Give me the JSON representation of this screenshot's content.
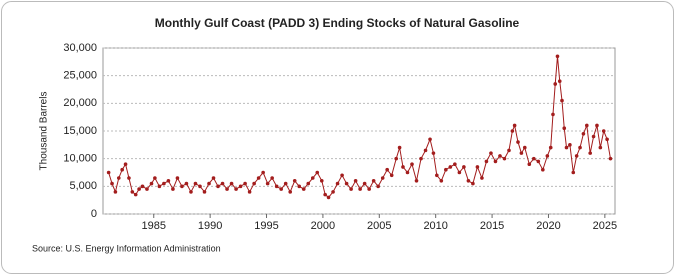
{
  "chart_data": {
    "type": "line",
    "title": "Monthly Gulf Coast (PADD 3) Ending Stocks of Natural Gasoline",
    "y_label": "Thousand Barrels",
    "source": "Source: U.S. Energy Information Administration",
    "color": "#a31d1d",
    "grid": true,
    "xlim": [
      1980.5,
      2025.9
    ],
    "xticks": [
      1985,
      1990,
      1995,
      2000,
      2005,
      2010,
      2015,
      2020,
      2025
    ],
    "ylim": [
      0,
      30000
    ],
    "yticks": [
      0,
      {
        "value": 5000,
        "label": "5,000"
      },
      {
        "value": 10000,
        "label": "10,000"
      },
      {
        "value": 15000,
        "label": "15,000"
      },
      {
        "value": 20000,
        "label": "20,000"
      },
      {
        "value": 25000,
        "label": "25,000"
      },
      {
        "value": 30000,
        "label": "30,000"
      }
    ],
    "x": [
      1981.0,
      1981.3,
      1981.6,
      1981.9,
      1982.2,
      1982.5,
      1982.8,
      1983.1,
      1983.4,
      1983.7,
      1984.0,
      1984.4,
      1984.8,
      1985.1,
      1985.5,
      1985.9,
      1986.3,
      1986.7,
      1987.1,
      1987.5,
      1987.9,
      1988.3,
      1988.7,
      1989.1,
      1989.5,
      1989.9,
      1990.3,
      1990.7,
      1991.1,
      1991.5,
      1991.9,
      1992.3,
      1992.7,
      1993.1,
      1993.5,
      1993.9,
      1994.3,
      1994.7,
      1995.1,
      1995.5,
      1995.9,
      1996.3,
      1996.7,
      1997.1,
      1997.5,
      1997.9,
      1998.3,
      1998.7,
      1999.1,
      1999.5,
      1999.9,
      2000.2,
      2000.5,
      2000.9,
      2001.3,
      2001.7,
      2002.1,
      2002.5,
      2002.9,
      2003.3,
      2003.7,
      2004.1,
      2004.5,
      2004.9,
      2005.3,
      2005.7,
      2006.1,
      2006.5,
      2006.8,
      2007.1,
      2007.5,
      2007.9,
      2008.3,
      2008.7,
      2009.1,
      2009.5,
      2009.8,
      2010.1,
      2010.5,
      2010.9,
      2011.3,
      2011.7,
      2012.1,
      2012.5,
      2012.9,
      2013.3,
      2013.7,
      2014.1,
      2014.5,
      2014.9,
      2015.3,
      2015.7,
      2016.1,
      2016.5,
      2016.8,
      2017.0,
      2017.3,
      2017.6,
      2017.9,
      2018.3,
      2018.7,
      2019.1,
      2019.5,
      2019.9,
      2020.2,
      2020.4,
      2020.6,
      2020.8,
      2021.0,
      2021.2,
      2021.4,
      2021.6,
      2021.9,
      2022.2,
      2022.5,
      2022.8,
      2023.1,
      2023.4,
      2023.7,
      2024.0,
      2024.3,
      2024.6,
      2024.9,
      2025.2,
      2025.5
    ],
    "values": [
      7500,
      5500,
      4000,
      6500,
      8000,
      9000,
      6500,
      4000,
      3500,
      4500,
      5000,
      4500,
      5500,
      6500,
      5000,
      5500,
      6000,
      4500,
      6500,
      5000,
      5500,
      4000,
      5500,
      5000,
      4000,
      5500,
      6500,
      5000,
      5500,
      4500,
      5500,
      4500,
      5000,
      5500,
      4000,
      5500,
      6500,
      7500,
      5500,
      6500,
      5000,
      4500,
      5500,
      4000,
      6000,
      5000,
      4500,
      5500,
      6500,
      7500,
      6000,
      3500,
      3000,
      4000,
      5500,
      7000,
      5500,
      4500,
      6000,
      4500,
      5500,
      4500,
      6000,
      5000,
      6500,
      8000,
      7000,
      10000,
      12000,
      8500,
      7500,
      9000,
      6000,
      10000,
      11500,
      13500,
      11000,
      7000,
      6000,
      8000,
      8500,
      9000,
      7500,
      8500,
      6000,
      5500,
      8500,
      6500,
      9500,
      11000,
      9500,
      10500,
      10000,
      11500,
      15000,
      16000,
      13000,
      11000,
      12000,
      9000,
      10000,
      9500,
      8000,
      10500,
      12000,
      18000,
      23500,
      28500,
      24000,
      20500,
      15500,
      12000,
      12500,
      7500,
      10500,
      12000,
      14500,
      16000,
      11000,
      14000,
      16000,
      12000,
      15000,
      13500,
      10000
    ]
  }
}
